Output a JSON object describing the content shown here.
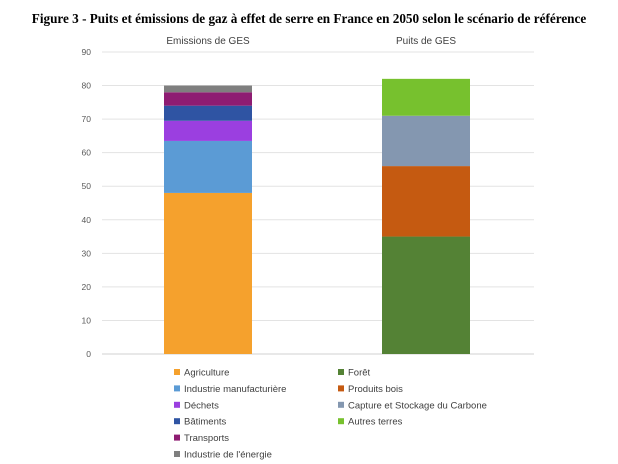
{
  "figure_title": "Figure 3 - Puits et émissions de gaz à effet de serre en France en 2050 selon le scénario de référence",
  "chart_data": {
    "type": "bar",
    "stacked": true,
    "title": "Figure 3 - Puits et émissions de gaz à effet de serre en France en 2050 selon le scénario de référence",
    "categories": [
      "Emissions de GES",
      "Puits de GES"
    ],
    "ylim": [
      0,
      90
    ],
    "yticks": [
      0,
      10,
      20,
      30,
      40,
      50,
      60,
      70,
      80,
      90
    ],
    "grid": true,
    "legend_position": "bottom",
    "series": [
      {
        "name": "Agriculture",
        "color": "#f5a12d",
        "values": [
          48,
          0
        ]
      },
      {
        "name": "Industrie manufacturière",
        "color": "#5b9bd5",
        "values": [
          15.5,
          0
        ]
      },
      {
        "name": "Déchets",
        "color": "#9b3fe0",
        "values": [
          6,
          0
        ]
      },
      {
        "name": "Bâtiments",
        "color": "#2f54a3",
        "values": [
          4.5,
          0
        ]
      },
      {
        "name": "Transports",
        "color": "#8e1c72",
        "values": [
          4,
          0
        ]
      },
      {
        "name": "Industrie de l'énergie",
        "color": "#7f7f7f",
        "values": [
          2,
          0
        ]
      },
      {
        "name": "Forêt",
        "color": "#548235",
        "values": [
          0,
          35
        ]
      },
      {
        "name": "Produits bois",
        "color": "#c55a11",
        "values": [
          0,
          21
        ]
      },
      {
        "name": "Capture et Stockage du Carbone",
        "color": "#8497b0",
        "values": [
          0,
          15
        ]
      },
      {
        "name": "Autres terres",
        "color": "#77c12e",
        "values": [
          0,
          11
        ]
      }
    ],
    "legend_left": [
      "Agriculture",
      "Industrie manufacturière",
      "Déchets",
      "Bâtiments",
      "Transports",
      "Industrie de l'énergie"
    ],
    "legend_right": [
      "Forêt",
      "Produits bois",
      "Capture et Stockage du Carbone",
      "Autres terres"
    ]
  }
}
